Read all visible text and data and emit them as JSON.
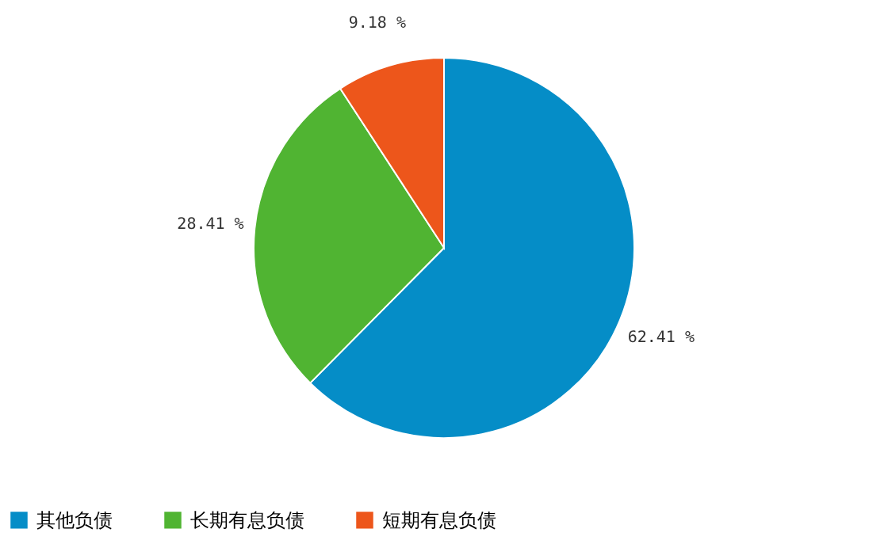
{
  "chart_data": {
    "type": "pie",
    "categories": [
      "其他负债",
      "长期有息负债",
      "短期有息负债"
    ],
    "values": [
      62.41,
      28.41,
      9.18
    ],
    "colors": [
      "#058dc7",
      "#50b432",
      "#ed561b"
    ],
    "value_labels": [
      "62.41 %",
      "28.41 %",
      "9.18 %"
    ],
    "legend": "bottom"
  }
}
